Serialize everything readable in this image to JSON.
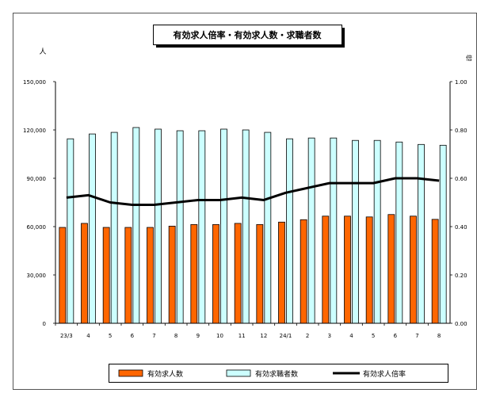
{
  "chart_data": {
    "type": "bar",
    "title": "有効求人倍率・有効求人数・求職者数",
    "left_axis_label": "人",
    "right_axis_label": "倍",
    "categories": [
      "23/3",
      "4",
      "5",
      "6",
      "7",
      "8",
      "9",
      "10",
      "11",
      "12",
      "24/1",
      "2",
      "3",
      "4",
      "5",
      "6",
      "7",
      "8"
    ],
    "left_ylim": [
      0,
      150000
    ],
    "left_ticks": [
      "0",
      "30,000",
      "60,000",
      "90,000",
      "120,000",
      "150,000"
    ],
    "right_ylim": [
      0,
      1.0
    ],
    "right_ticks": [
      "0.00",
      "0.20",
      "0.40",
      "0.60",
      "0.80",
      "1.00"
    ],
    "grid": false,
    "legend_position": "bottom",
    "series": [
      {
        "name": "有効求人数",
        "kind": "bar",
        "axis": "left",
        "color": "#ff6600",
        "values": [
          59500,
          62000,
          59500,
          59500,
          59500,
          60300,
          61300,
          61300,
          62000,
          61300,
          62800,
          64300,
          66500,
          66500,
          66000,
          67500,
          66500,
          64500
        ]
      },
      {
        "name": "有効求職者数",
        "kind": "bar",
        "axis": "left",
        "color": "#ccffff",
        "values": [
          114500,
          117500,
          118500,
          121500,
          120500,
          119500,
          119500,
          120500,
          120000,
          118500,
          114500,
          115000,
          115000,
          113500,
          113500,
          112500,
          111000,
          110500
        ]
      },
      {
        "name": "有効求人倍率",
        "kind": "line",
        "axis": "right",
        "color": "#000000",
        "values": [
          0.52,
          0.53,
          0.5,
          0.49,
          0.49,
          0.5,
          0.51,
          0.51,
          0.52,
          0.51,
          0.54,
          0.56,
          0.58,
          0.58,
          0.58,
          0.6,
          0.6,
          0.59
        ]
      }
    ]
  }
}
